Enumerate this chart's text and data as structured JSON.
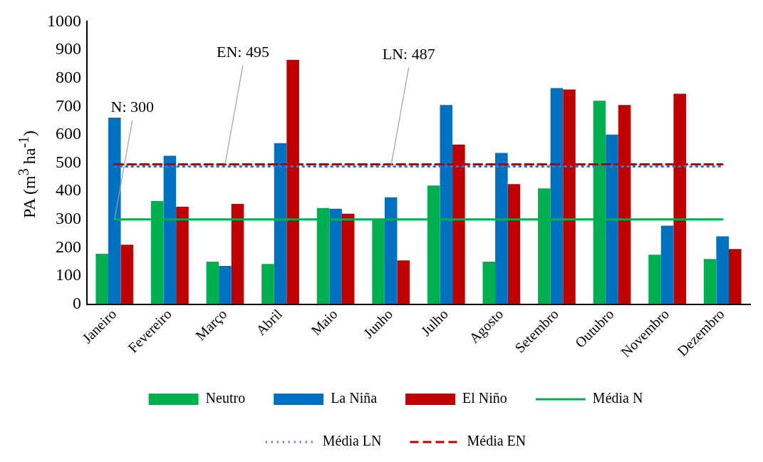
{
  "chart_data": {
    "type": "bar",
    "ylabel": "PA (m$^{3}$ ha$^{-1}$)",
    "categories": [
      "Janeiro",
      "Fevereiro",
      "Março",
      "Abril",
      "Maio",
      "Junho",
      "Julho",
      "Agosto",
      "Setembro",
      "Outubro",
      "Novembro",
      "Dezembro"
    ],
    "series": [
      {
        "name": "Neutro",
        "color": "#00b050",
        "values": [
          178,
          365,
          150,
          142,
          340,
          300,
          420,
          150,
          410,
          720,
          175,
          160
        ]
      },
      {
        "name": "La Niña",
        "color": "#0070c0",
        "values": [
          660,
          525,
          135,
          570,
          338,
          378,
          705,
          535,
          765,
          600,
          278,
          240
        ]
      },
      {
        "name": "El Niño",
        "color": "#c00000",
        "values": [
          210,
          345,
          355,
          865,
          320,
          155,
          565,
          425,
          760,
          705,
          745,
          195
        ]
      },
      {
        "name": "Média N",
        "type": "line",
        "line_style": "solid",
        "color": "#00b050",
        "values": [
          300,
          300,
          300,
          300,
          300,
          300,
          300,
          300,
          300,
          300,
          300,
          300
        ]
      },
      {
        "name": "Média LN",
        "type": "line",
        "line_style": "dotted",
        "color": "#4472c4",
        "values": [
          487,
          487,
          487,
          487,
          487,
          487,
          487,
          487,
          487,
          487,
          487,
          487
        ]
      },
      {
        "name": "Média EN",
        "type": "line",
        "line_style": "dashed",
        "color": "#c00000",
        "values": [
          495,
          495,
          495,
          495,
          495,
          495,
          495,
          495,
          495,
          495,
          495,
          495
        ]
      }
    ],
    "annotations": [
      {
        "text": "N: 300",
        "x": "Janeiro",
        "y": 300
      },
      {
        "text": "EN: 495",
        "x": "Março",
        "y": 495
      },
      {
        "text": "LN: 487",
        "x": "Junho",
        "y": 487
      }
    ],
    "ylim": [
      0,
      1000
    ],
    "yticks": [
      0,
      100,
      200,
      300,
      400,
      500,
      600,
      700,
      800,
      900,
      1000
    ],
    "grid": false,
    "legend": "bottom",
    "marker": "none"
  }
}
